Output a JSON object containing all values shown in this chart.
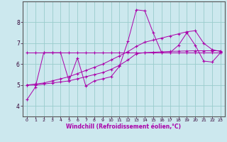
{
  "title": "",
  "xlabel": "Windchill (Refroidissement éolien,°C)",
  "xlim": [
    -0.5,
    23.5
  ],
  "ylim": [
    3.5,
    9.0
  ],
  "bg_color": "#cce8ee",
  "line_color": "#aa00aa",
  "grid_color": "#99cccc",
  "xticks": [
    0,
    1,
    2,
    3,
    4,
    5,
    6,
    7,
    8,
    9,
    10,
    11,
    12,
    13,
    14,
    15,
    16,
    17,
    18,
    19,
    20,
    21,
    22,
    23
  ],
  "yticks": [
    4,
    5,
    6,
    7,
    8
  ],
  "lines": [
    {
      "x": [
        0,
        1,
        2,
        3,
        4,
        5,
        6,
        7,
        8,
        9,
        10,
        11,
        12,
        13,
        14,
        15,
        16,
        17,
        18,
        19,
        20,
        21,
        22,
        23
      ],
      "y": [
        4.3,
        4.9,
        6.55,
        6.55,
        6.55,
        5.2,
        6.3,
        4.95,
        5.2,
        5.3,
        5.4,
        5.9,
        7.1,
        8.6,
        8.55,
        7.5,
        6.55,
        6.55,
        6.9,
        7.5,
        6.9,
        6.15,
        6.1,
        6.55
      ]
    },
    {
      "x": [
        0,
        1,
        2,
        3,
        4,
        5,
        6,
        7,
        8,
        9,
        10,
        11,
        12,
        13,
        14,
        15,
        16,
        17,
        18,
        19,
        20,
        21,
        22,
        23
      ],
      "y": [
        6.55,
        6.55,
        6.55,
        6.55,
        6.55,
        6.55,
        6.55,
        6.55,
        6.55,
        6.55,
        6.55,
        6.55,
        6.55,
        6.55,
        6.55,
        6.55,
        6.55,
        6.55,
        6.55,
        6.55,
        6.55,
        6.55,
        6.55,
        6.55
      ]
    },
    {
      "x": [
        0,
        1,
        2,
        3,
        4,
        5,
        6,
        7,
        8,
        9,
        10,
        11,
        12,
        13,
        14,
        15,
        16,
        17,
        18,
        19,
        20,
        21,
        22,
        23
      ],
      "y": [
        5.0,
        5.0,
        5.05,
        5.1,
        5.15,
        5.2,
        5.3,
        5.4,
        5.5,
        5.6,
        5.75,
        5.95,
        6.2,
        6.5,
        6.55,
        6.57,
        6.59,
        6.61,
        6.62,
        6.63,
        6.64,
        6.64,
        6.64,
        6.64
      ]
    },
    {
      "x": [
        0,
        1,
        2,
        3,
        4,
        5,
        6,
        7,
        8,
        9,
        10,
        11,
        12,
        13,
        14,
        15,
        16,
        17,
        18,
        19,
        20,
        21,
        22,
        23
      ],
      "y": [
        5.0,
        5.05,
        5.1,
        5.2,
        5.3,
        5.4,
        5.55,
        5.7,
        5.85,
        6.0,
        6.2,
        6.4,
        6.6,
        6.85,
        7.05,
        7.15,
        7.25,
        7.35,
        7.45,
        7.55,
        7.6,
        7.0,
        6.7,
        6.6
      ]
    }
  ]
}
